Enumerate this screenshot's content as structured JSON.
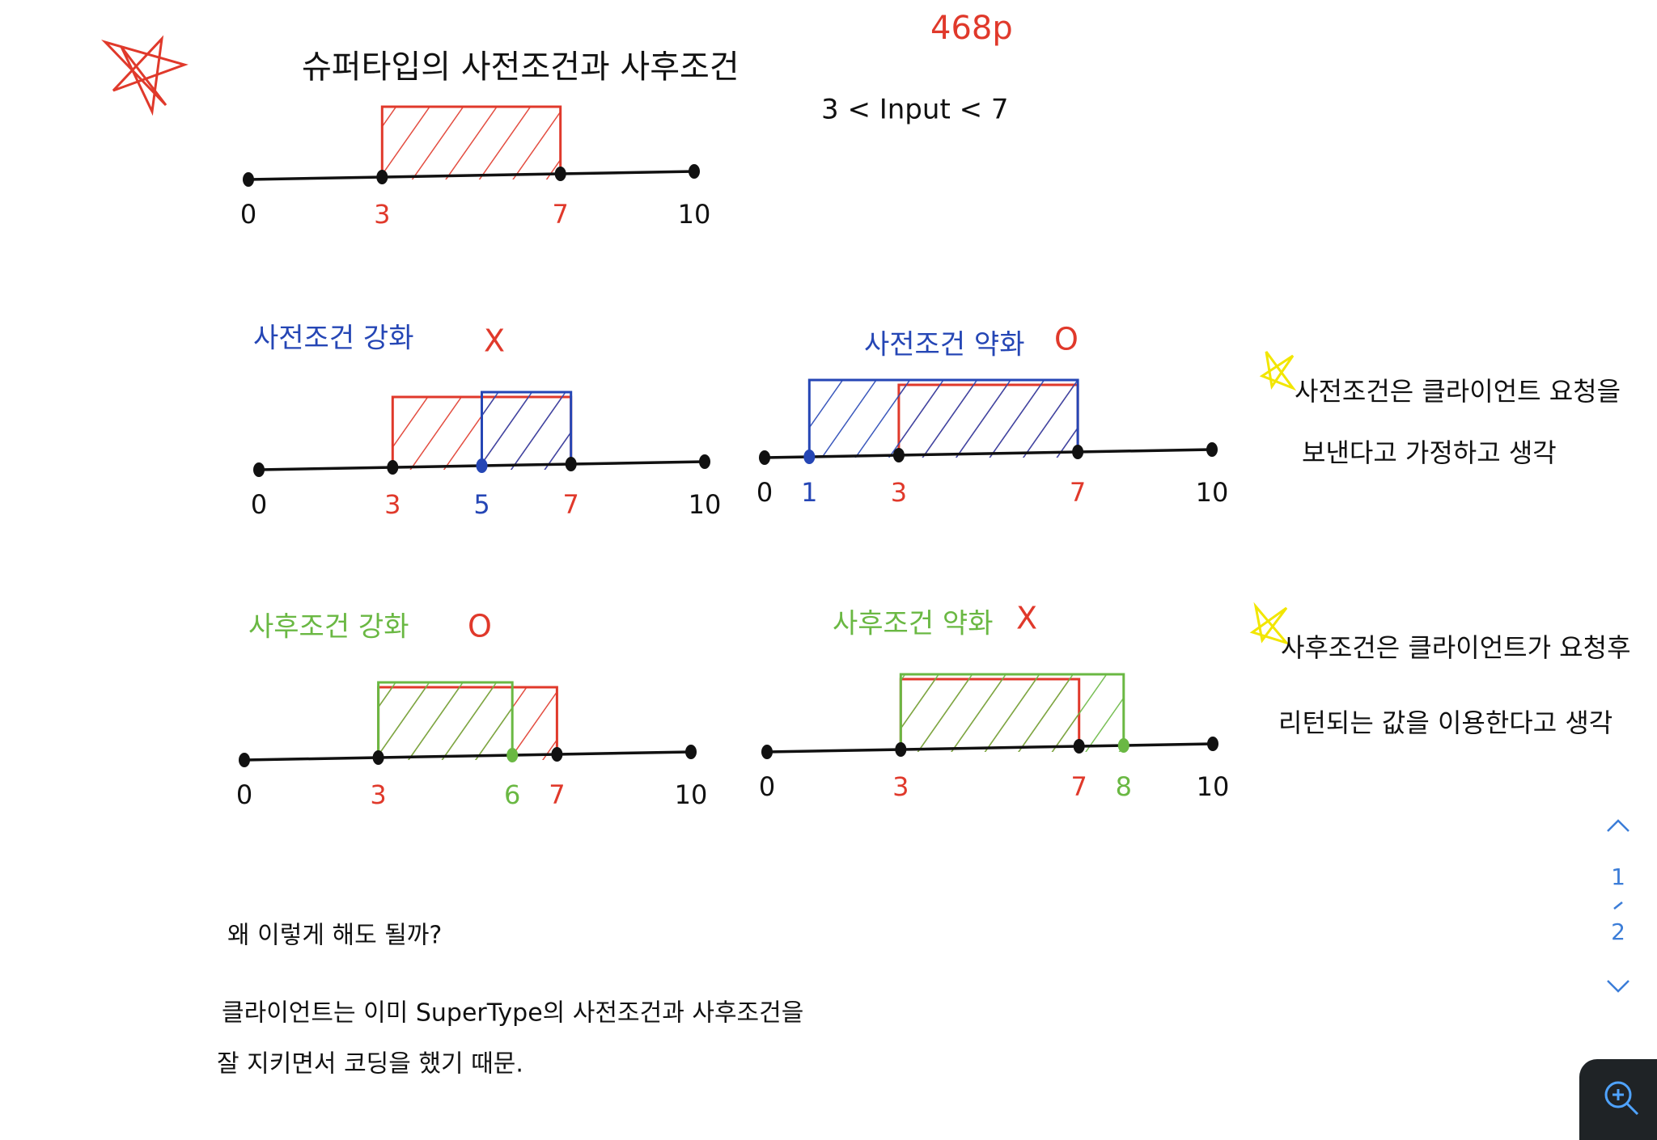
{
  "title": "슈퍼타입의 사전조건과 사후조건",
  "page_ref": "468p",
  "condition": "3 < Input < 7",
  "diagrams": [
    {
      "ticks": [
        {
          "value": 0,
          "color": "#111111"
        },
        {
          "value": 3,
          "color": "#e0392b"
        },
        {
          "value": 7,
          "color": "#e0392b"
        },
        {
          "value": 10,
          "color": "#111111"
        }
      ],
      "ranges": [
        {
          "from": 3,
          "to": 7,
          "color": "#e0392b"
        }
      ]
    },
    {
      "heading": "사전조건 강화",
      "heading_color": "#2546b5",
      "verdict": "X",
      "verdict_color": "#e0392b",
      "ticks": [
        {
          "value": 0,
          "color": "#111111"
        },
        {
          "value": 3,
          "color": "#e0392b"
        },
        {
          "value": 5,
          "color": "#2546b5"
        },
        {
          "value": 7,
          "color": "#e0392b"
        },
        {
          "value": 10,
          "color": "#111111"
        }
      ],
      "ranges": [
        {
          "from": 3,
          "to": 7,
          "color": "#e0392b"
        },
        {
          "from": 5,
          "to": 7,
          "color": "#2546b5"
        }
      ]
    },
    {
      "heading": "사전조건 약화",
      "heading_color": "#2546b5",
      "verdict": "O",
      "verdict_color": "#e0392b",
      "ticks": [
        {
          "value": 0,
          "color": "#111111"
        },
        {
          "value": 1,
          "color": "#2546b5"
        },
        {
          "value": 3,
          "color": "#e0392b"
        },
        {
          "value": 7,
          "color": "#e0392b"
        },
        {
          "value": 10,
          "color": "#111111"
        }
      ],
      "ranges": [
        {
          "from": 3,
          "to": 7,
          "color": "#e0392b"
        },
        {
          "from": 1,
          "to": 7,
          "color": "#2546b5"
        }
      ]
    },
    {
      "heading": "사후조건 강화",
      "heading_color": "#6ab843",
      "verdict": "O",
      "verdict_color": "#e0392b",
      "ticks": [
        {
          "value": 0,
          "color": "#111111"
        },
        {
          "value": 3,
          "color": "#e0392b"
        },
        {
          "value": 6,
          "color": "#6ab843"
        },
        {
          "value": 7,
          "color": "#e0392b"
        },
        {
          "value": 10,
          "color": "#111111"
        }
      ],
      "ranges": [
        {
          "from": 3,
          "to": 7,
          "color": "#e0392b"
        },
        {
          "from": 3,
          "to": 6,
          "color": "#6ab843"
        }
      ]
    },
    {
      "heading": "사후조건 약화",
      "heading_color": "#6ab843",
      "verdict": "X",
      "verdict_color": "#e0392b",
      "ticks": [
        {
          "value": 0,
          "color": "#111111"
        },
        {
          "value": 3,
          "color": "#e0392b"
        },
        {
          "value": 7,
          "color": "#e0392b"
        },
        {
          "value": 8,
          "color": "#6ab843"
        },
        {
          "value": 10,
          "color": "#111111"
        }
      ],
      "ranges": [
        {
          "from": 3,
          "to": 7,
          "color": "#e0392b"
        },
        {
          "from": 3,
          "to": 8,
          "color": "#6ab843"
        }
      ]
    }
  ],
  "notes": [
    {
      "lines": [
        "사전조건은 클라이언트 요청을",
        "보낸다고 가정하고 생각"
      ]
    },
    {
      "lines": [
        "사후조건은 클라이언트가 요청후",
        "리턴되는 값을 이용한다고 생각"
      ]
    }
  ],
  "footer": {
    "question": "왜 이렇게 해도 될까?",
    "answer": [
      "클라이언트는 이미 SuperType의 사전조건과 사후조건을",
      "잘 지키면서 코딩을 했기 때문."
    ]
  },
  "pager": {
    "current": "1",
    "total": "2"
  }
}
